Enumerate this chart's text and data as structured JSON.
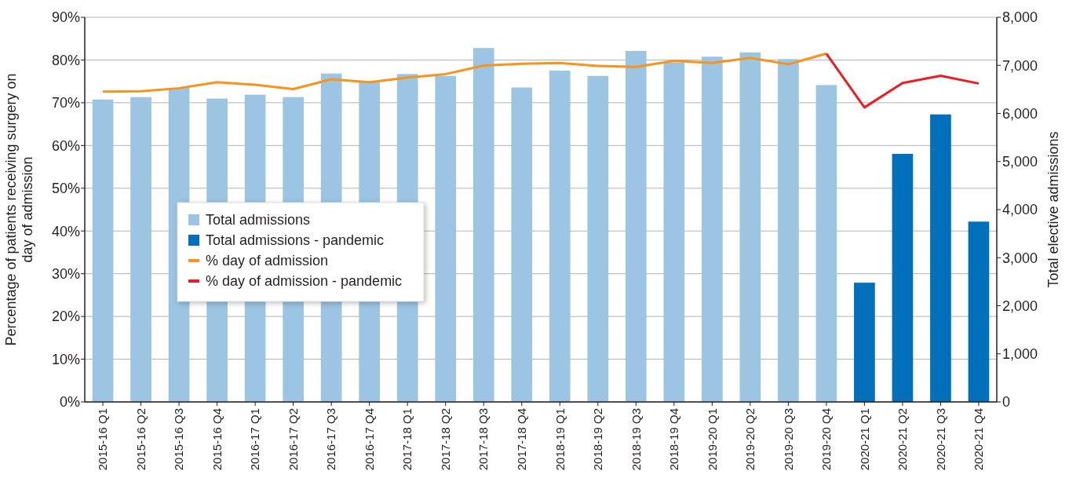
{
  "chart_data": {
    "type": "bar",
    "ylabel": "Percentage of patients receiving surgery on day of admission",
    "y2label": "Total elective admissions",
    "categories": [
      "2015-16 Q1",
      "2015-16 Q2",
      "2015-16 Q3",
      "2015-16 Q4",
      "2016-17 Q1",
      "2016-17 Q2",
      "2016-17 Q3",
      "2016-17 Q4",
      "2017-18 Q1",
      "2017-18 Q2",
      "2017-18 Q3",
      "2017-18 Q4",
      "2018-19 Q1",
      "2018-19 Q2",
      "2018-19 Q3",
      "2018-19 Q4",
      "2019-20 Q1",
      "2019-20 Q2",
      "2019-20 Q3",
      "2019-20 Q4",
      "2020-21 Q1",
      "2020-21 Q2",
      "2020-21 Q3",
      "2020-21 Q4"
    ],
    "series": [
      {
        "name": "Total admissions",
        "axis": "y2",
        "color": "#9bc5e3",
        "values": [
          6290,
          6340,
          6530,
          6310,
          6390,
          6340,
          6830,
          6660,
          6820,
          6780,
          7360,
          6540,
          6890,
          6780,
          7300,
          7060,
          7180,
          7270,
          7130,
          6590,
          null,
          null,
          null,
          null
        ]
      },
      {
        "name": "Total admissions - pandemic",
        "axis": "y2",
        "color": "#0070ba",
        "values": [
          null,
          null,
          null,
          null,
          null,
          null,
          null,
          null,
          null,
          null,
          null,
          null,
          null,
          null,
          null,
          null,
          null,
          null,
          null,
          null,
          2480,
          5160,
          5980,
          3750
        ]
      },
      {
        "name": "% day of admission",
        "type": "line",
        "color": "#f7941d",
        "values": [
          72.6,
          72.7,
          73.4,
          74.8,
          74.2,
          73.2,
          75.5,
          74.8,
          75.9,
          76.7,
          78.7,
          79.1,
          79.3,
          78.6,
          78.4,
          79.8,
          79.3,
          80.5,
          79.0,
          81.5,
          null,
          null,
          null,
          null
        ]
      },
      {
        "name": "% day of admission - pandemic",
        "type": "line",
        "color": "#ed1c24",
        "values": [
          null,
          null,
          null,
          null,
          null,
          null,
          null,
          null,
          null,
          null,
          null,
          null,
          null,
          null,
          null,
          null,
          null,
          null,
          null,
          81.5,
          68.9,
          74.6,
          76.3,
          74.5
        ]
      }
    ],
    "ylim": [
      0,
      90
    ],
    "yticks": [
      {
        "value": 0,
        "label": "0%"
      },
      {
        "value": 10,
        "label": "10%"
      },
      {
        "value": 20,
        "label": "20%"
      },
      {
        "value": 30,
        "label": "30%"
      },
      {
        "value": 40,
        "label": "40%"
      },
      {
        "value": 50,
        "label": "50%"
      },
      {
        "value": 60,
        "label": "60%"
      },
      {
        "value": 70,
        "label": "70%"
      },
      {
        "value": 80,
        "label": "80%"
      },
      {
        "value": 90,
        "label": "90%"
      }
    ],
    "y2lim": [
      0,
      8000
    ],
    "y2ticks": [
      0,
      {
        "value": 1000,
        "label": "1,000"
      },
      {
        "value": 2000,
        "label": "2,000"
      },
      {
        "value": 3000,
        "label": "3,000"
      },
      {
        "value": 4000,
        "label": "4,000"
      },
      {
        "value": 5000,
        "label": "5,000"
      },
      {
        "value": 6000,
        "label": "6,000"
      },
      {
        "value": 7000,
        "label": "7,000"
      },
      {
        "value": 8000,
        "label": "8,000"
      }
    ],
    "grid": "y",
    "legend": "left"
  }
}
